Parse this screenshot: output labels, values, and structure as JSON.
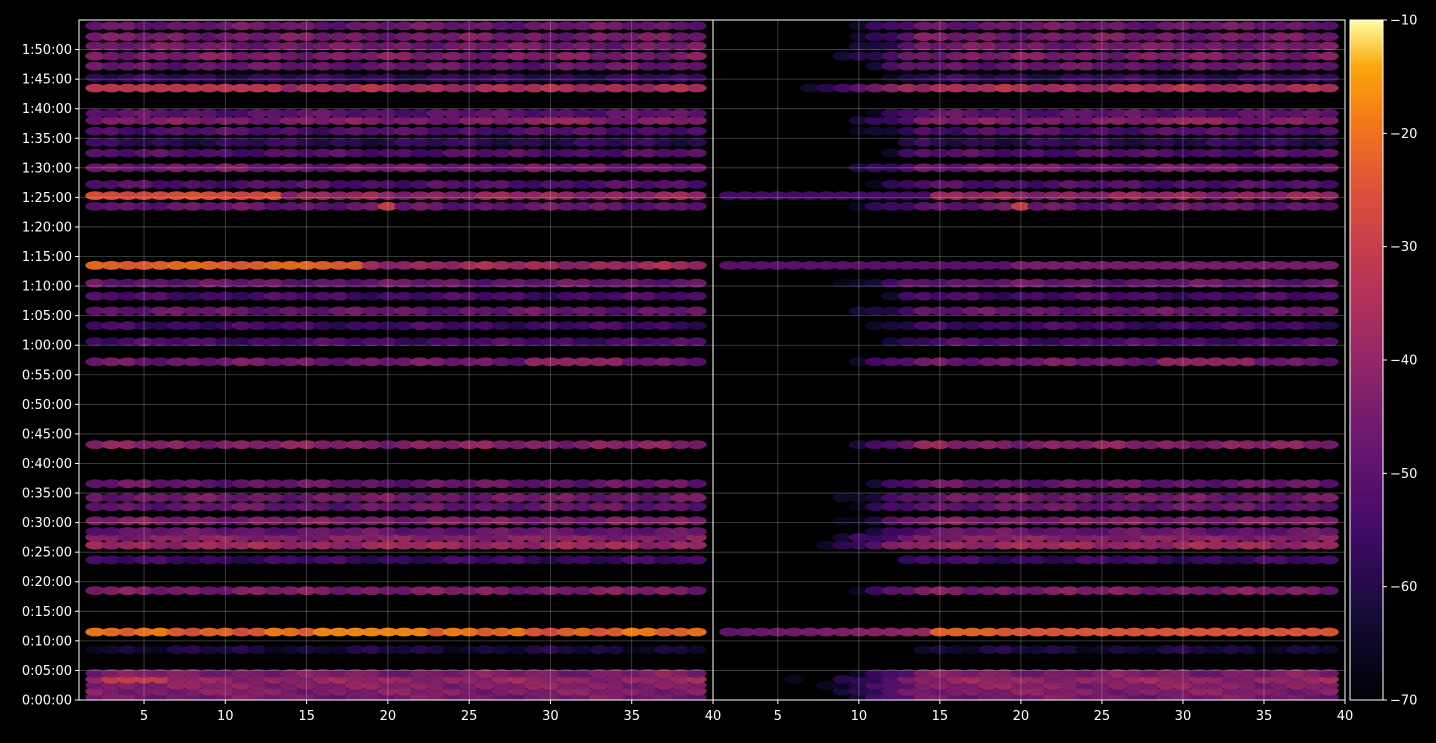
{
  "chart_data": {
    "type": "heatmap",
    "shared_y_axis": {
      "tick_labels": [
        "0:00:00",
        "0:05:00",
        "0:10:00",
        "0:15:00",
        "0:20:00",
        "0:25:00",
        "0:30:00",
        "0:35:00",
        "0:40:00",
        "0:45:00",
        "0:50:00",
        "0:55:00",
        "1:00:00",
        "1:05:00",
        "1:10:00",
        "1:15:00",
        "1:20:00",
        "1:25:00",
        "1:30:00",
        "1:35:00",
        "1:40:00",
        "1:45:00",
        "1:50:00"
      ],
      "ylim_minutes": [
        0,
        115
      ]
    },
    "panels": [
      {
        "name": "left",
        "xlim": [
          1,
          40
        ],
        "x_ticks": [
          5,
          10,
          15,
          20,
          25,
          30,
          35,
          40
        ],
        "grid": true,
        "x_columns": [
          2,
          3,
          4,
          5,
          6,
          7,
          8,
          9,
          10,
          11,
          12,
          13,
          14,
          15,
          16,
          17,
          18,
          19,
          20,
          21,
          22,
          23,
          24,
          25,
          26,
          27,
          28,
          29,
          30,
          31,
          32,
          33,
          34,
          35,
          36,
          37,
          38,
          39
        ],
        "row_minutes": [
          0.5,
          1.5,
          2.5,
          3.5,
          4.5,
          8.5,
          11.5,
          18.5,
          23.7,
          26.2,
          27.5,
          28.5,
          30.3,
          32.7,
          34.2,
          36.6,
          43.2,
          57.2,
          60.6,
          63.3,
          65.8,
          68.3,
          70.5,
          73.5,
          83.5,
          85.3,
          87.2,
          90.0,
          92.5,
          94.3,
          96.2,
          98.0,
          99.2,
          103.5,
          105.2,
          107.2,
          108.9,
          110.6,
          112.2,
          114.0
        ]
      },
      {
        "name": "right",
        "xlim": [
          1,
          40
        ],
        "x_ticks": [
          5,
          10,
          15,
          20,
          25,
          30,
          35,
          40
        ],
        "grid": true
      }
    ],
    "colorbar": {
      "colormap": "inferno",
      "range": [
        -70,
        -10
      ],
      "ticks": [
        -70,
        -60,
        -50,
        -40,
        -30,
        -20,
        -10
      ],
      "tick_labels": [
        "−70",
        "−60",
        "−50",
        "−40",
        "−30",
        "−20",
        "−10"
      ]
    },
    "colors": {
      "background": "#000000",
      "axes_frame": "#ffffff",
      "gridline": "#ffffff"
    }
  }
}
